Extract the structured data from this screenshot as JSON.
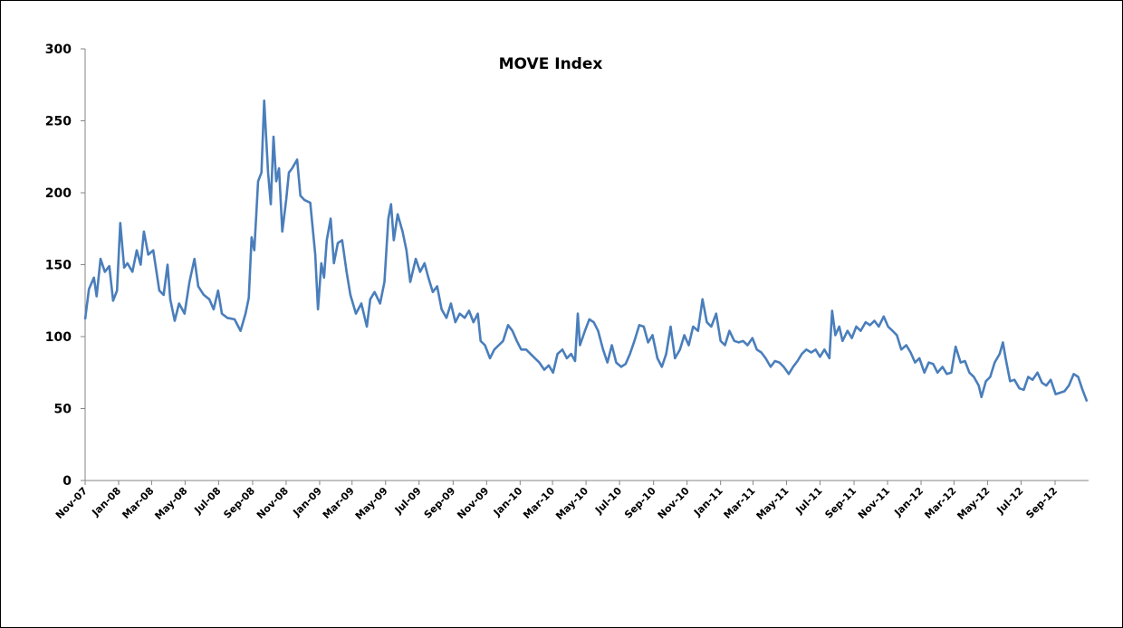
{
  "chart_data": {
    "type": "line",
    "title": "MOVE Index",
    "xlabel": "",
    "ylabel": "",
    "ylim": [
      0,
      300
    ],
    "yticks": [
      0,
      50,
      100,
      150,
      200,
      250,
      300
    ],
    "xlim": [
      "2007-11-01",
      "2012-11-01"
    ],
    "xticks": [
      "Nov-07",
      "Jan-08",
      "Mar-08",
      "May-08",
      "Jul-08",
      "Sep-08",
      "Nov-08",
      "Jan-09",
      "Mar-09",
      "May-09",
      "Jul-09",
      "Sep-09",
      "Nov-09",
      "Jan-10",
      "Mar-10",
      "May-10",
      "Jul-10",
      "Sep-10",
      "Nov-10",
      "Jan-11",
      "Mar-11",
      "May-11",
      "Jul-11",
      "Sep-11",
      "Nov-11",
      "Jan-12",
      "Mar-12",
      "May-12",
      "Jul-12",
      "Sep-12"
    ],
    "grid": false,
    "legend": "none",
    "line_color": "#4a7ebb",
    "x": [
      "2007-11-01",
      "2007-11-08",
      "2007-11-17",
      "2007-11-22",
      "2007-11-29",
      "2007-12-07",
      "2007-12-15",
      "2007-12-22",
      "2007-12-29",
      "2008-01-04",
      "2008-01-11",
      "2008-01-17",
      "2008-01-26",
      "2008-02-03",
      "2008-02-10",
      "2008-02-16",
      "2008-02-24",
      "2008-03-04",
      "2008-03-15",
      "2008-03-23",
      "2008-03-30",
      "2008-04-04",
      "2008-04-12",
      "2008-04-20",
      "2008-04-30",
      "2008-05-09",
      "2008-05-18",
      "2008-05-25",
      "2008-06-04",
      "2008-06-14",
      "2008-06-22",
      "2008-06-30",
      "2008-07-07",
      "2008-07-17",
      "2008-07-30",
      "2008-08-10",
      "2008-08-19",
      "2008-08-25",
      "2008-08-30",
      "2008-09-04",
      "2008-09-11",
      "2008-09-17",
      "2008-09-22",
      "2008-09-29",
      "2008-10-04",
      "2008-10-09",
      "2008-10-14",
      "2008-10-19",
      "2008-10-25",
      "2008-11-01",
      "2008-11-06",
      "2008-11-12",
      "2008-11-21",
      "2008-11-27",
      "2008-12-04",
      "2008-12-15",
      "2008-12-24",
      "2008-12-29",
      "2009-01-04",
      "2009-01-09",
      "2009-01-14",
      "2009-01-21",
      "2009-01-27",
      "2009-02-03",
      "2009-02-11",
      "2009-02-19",
      "2009-02-26",
      "2009-03-08",
      "2009-03-18",
      "2009-03-28",
      "2009-04-03",
      "2009-04-11",
      "2009-04-21",
      "2009-04-29",
      "2009-05-06",
      "2009-05-11",
      "2009-05-16",
      "2009-05-23",
      "2009-06-01",
      "2009-06-08",
      "2009-06-15",
      "2009-06-25",
      "2009-07-03",
      "2009-07-11",
      "2009-07-18",
      "2009-07-26",
      "2009-08-03",
      "2009-08-11",
      "2009-08-20",
      "2009-08-28",
      "2009-09-05",
      "2009-09-13",
      "2009-09-22",
      "2009-09-30",
      "2009-10-08",
      "2009-10-16",
      "2009-10-21",
      "2009-10-29",
      "2009-11-07",
      "2009-11-15",
      "2009-11-23",
      "2009-12-01",
      "2009-12-10",
      "2009-12-18",
      "2009-12-26",
      "2010-01-03",
      "2010-01-12",
      "2010-01-20",
      "2010-01-28",
      "2010-02-05",
      "2010-02-14",
      "2010-02-22",
      "2010-03-02",
      "2010-03-10",
      "2010-03-19",
      "2010-03-27",
      "2010-04-04",
      "2010-04-11",
      "2010-04-16",
      "2010-04-20",
      "2010-04-29",
      "2010-05-07",
      "2010-05-15",
      "2010-05-23",
      "2010-06-01",
      "2010-06-09",
      "2010-06-17",
      "2010-06-25",
      "2010-07-04",
      "2010-07-12",
      "2010-07-20",
      "2010-07-28",
      "2010-08-06",
      "2010-08-14",
      "2010-08-22",
      "2010-08-30",
      "2010-09-08",
      "2010-09-16",
      "2010-09-24",
      "2010-10-02",
      "2010-10-10",
      "2010-10-19",
      "2010-10-27",
      "2010-11-04",
      "2010-11-12",
      "2010-11-21",
      "2010-11-29",
      "2010-12-07",
      "2010-12-15",
      "2010-12-24",
      "2011-01-01",
      "2011-01-09",
      "2011-01-17",
      "2011-01-26",
      "2011-02-03",
      "2011-02-11",
      "2011-02-19",
      "2011-02-28",
      "2011-03-08",
      "2011-03-16",
      "2011-03-24",
      "2011-04-02",
      "2011-04-10",
      "2011-04-18",
      "2011-04-26",
      "2011-05-05",
      "2011-05-13",
      "2011-05-21",
      "2011-05-29",
      "2011-06-06",
      "2011-06-15",
      "2011-06-23",
      "2011-07-01",
      "2011-07-09",
      "2011-07-18",
      "2011-07-23",
      "2011-07-29",
      "2011-08-05",
      "2011-08-11",
      "2011-08-20",
      "2011-08-28",
      "2011-09-05",
      "2011-09-13",
      "2011-09-22",
      "2011-09-30",
      "2011-10-08",
      "2011-10-16",
      "2011-10-25",
      "2011-11-02",
      "2011-11-10",
      "2011-11-18",
      "2011-11-26",
      "2011-12-05",
      "2011-12-13",
      "2011-12-21",
      "2011-12-29",
      "2012-01-07",
      "2012-01-15",
      "2012-01-23",
      "2012-01-31",
      "2012-02-09",
      "2012-02-17",
      "2012-02-25",
      "2012-03-04",
      "2012-03-13",
      "2012-03-21",
      "2012-03-29",
      "2012-04-06",
      "2012-04-15",
      "2012-04-20",
      "2012-04-28",
      "2012-05-06",
      "2012-05-14",
      "2012-05-23",
      "2012-05-29",
      "2012-06-03",
      "2012-06-11",
      "2012-06-19",
      "2012-06-28",
      "2012-07-06",
      "2012-07-14",
      "2012-07-22",
      "2012-07-31",
      "2012-08-08",
      "2012-08-16",
      "2012-08-24",
      "2012-09-02",
      "2012-09-10",
      "2012-09-18",
      "2012-09-26",
      "2012-10-05",
      "2012-10-13",
      "2012-10-21",
      "2012-10-29"
    ],
    "y": [
      112,
      133,
      141,
      128,
      154,
      145,
      149,
      125,
      132,
      179,
      148,
      151,
      145,
      160,
      150,
      173,
      157,
      160,
      132,
      129,
      150,
      126,
      111,
      123,
      116,
      138,
      154,
      135,
      129,
      126,
      119,
      132,
      116,
      113,
      112,
      104,
      116,
      127,
      169,
      160,
      208,
      214,
      264,
      214,
      192,
      239,
      208,
      217,
      173,
      195,
      214,
      217,
      223,
      198,
      195,
      193,
      157,
      119,
      151,
      141,
      167,
      182,
      151,
      165,
      167,
      145,
      129,
      116,
      123,
      107,
      126,
      131,
      123,
      138,
      182,
      192,
      167,
      185,
      173,
      160,
      138,
      154,
      145,
      151,
      141,
      131,
      135,
      119,
      113,
      123,
      110,
      116,
      113,
      118,
      110,
      116,
      97,
      94,
      85,
      91,
      94,
      97,
      108,
      104,
      97,
      91,
      91,
      88,
      85,
      82,
      77,
      80,
      75,
      88,
      91,
      85,
      88,
      83,
      116,
      94,
      104,
      112,
      110,
      104,
      91,
      82,
      94,
      82,
      79,
      81,
      88,
      97,
      108,
      107,
      96,
      101,
      85,
      79,
      88,
      107,
      85,
      91,
      101,
      94,
      107,
      104,
      126,
      110,
      107,
      116,
      97,
      94,
      104,
      97,
      96,
      97,
      94,
      99,
      91,
      89,
      85,
      79,
      83,
      82,
      79,
      74,
      79,
      83,
      88,
      91,
      89,
      91,
      86,
      91,
      85,
      118,
      101,
      107,
      97,
      104,
      99,
      107,
      104,
      110,
      108,
      111,
      107,
      114,
      107,
      104,
      101,
      91,
      94,
      89,
      82,
      85,
      75,
      82,
      81,
      75,
      79,
      74,
      75,
      93,
      82,
      83,
      75,
      72,
      66,
      58,
      69,
      72,
      82,
      88,
      96,
      85,
      69,
      70,
      64,
      63,
      72,
      70,
      75,
      68,
      66,
      70,
      60,
      61,
      62,
      66,
      74,
      72,
      63,
      55
    ]
  }
}
